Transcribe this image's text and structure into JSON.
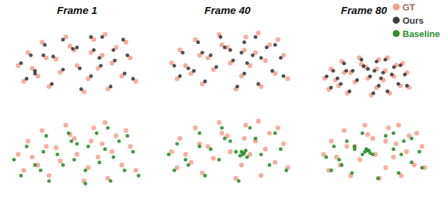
{
  "chart_data": [
    {
      "type": "scatter",
      "title": "Frame 1",
      "xlim": [
        0,
        100
      ],
      "ylim": [
        0,
        60
      ],
      "tick_labels": false,
      "series": [
        {
          "name": "GT",
          "color": "#f4a08e",
          "x": [
            8,
            15,
            22,
            12,
            25,
            35,
            30,
            42,
            38,
            48,
            55,
            50,
            62,
            58,
            68,
            72,
            65,
            78,
            82,
            75,
            88,
            92,
            85,
            45,
            28,
            60,
            70,
            18
          ],
          "y": [
            30,
            40,
            22,
            18,
            48,
            35,
            14,
            52,
            25,
            42,
            10,
            30,
            50,
            20,
            38,
            12,
            28,
            44,
            22,
            32,
            36,
            18,
            48,
            45,
            36,
            40,
            54,
            28
          ]
        },
        {
          "name": "Ours",
          "color": "#3c3c3c",
          "x": [
            10,
            17,
            20,
            14,
            27,
            33,
            32,
            40,
            40,
            50,
            53,
            52,
            60,
            60,
            66,
            74,
            67,
            76,
            84,
            77,
            86,
            90,
            83,
            47,
            26,
            62,
            68,
            20
          ],
          "y": [
            32,
            38,
            24,
            20,
            46,
            37,
            16,
            50,
            27,
            44,
            12,
            28,
            52,
            22,
            36,
            14,
            30,
            42,
            24,
            34,
            38,
            20,
            50,
            43,
            38,
            42,
            52,
            26
          ]
        }
      ]
    },
    {
      "type": "scatter",
      "title": "Frame 40",
      "xlim": [
        0,
        100
      ],
      "ylim": [
        0,
        60
      ],
      "tick_labels": false,
      "series": [
        {
          "name": "GT",
          "color": "#f4a08e",
          "x": [
            10,
            16,
            24,
            14,
            27,
            36,
            32,
            44,
            40,
            50,
            56,
            52,
            63,
            60,
            70,
            74,
            66,
            80,
            84,
            77,
            90,
            93,
            86,
            46,
            30,
            62,
            72,
            20
          ],
          "y": [
            32,
            42,
            24,
            20,
            50,
            36,
            16,
            54,
            27,
            44,
            12,
            32,
            52,
            22,
            40,
            14,
            30,
            46,
            24,
            34,
            38,
            20,
            50,
            46,
            38,
            42,
            55,
            30
          ]
        },
        {
          "name": "Ours",
          "color": "#3c3c3c",
          "x": [
            12,
            18,
            26,
            16,
            29,
            38,
            34,
            45,
            42,
            52,
            57,
            54,
            62,
            62,
            68,
            72,
            64,
            78,
            82,
            74,
            88,
            90,
            84,
            48,
            32,
            60,
            70,
            22
          ],
          "y": [
            30,
            40,
            26,
            22,
            48,
            38,
            18,
            52,
            29,
            42,
            14,
            34,
            48,
            24,
            38,
            16,
            32,
            44,
            26,
            36,
            36,
            22,
            46,
            44,
            40,
            40,
            52,
            28
          ]
        }
      ]
    },
    {
      "type": "scatter",
      "title": "Frame 80",
      "xlim": [
        0,
        100
      ],
      "ylim": [
        0,
        60
      ],
      "tick_labels": false,
      "legend": "upper right",
      "series": [
        {
          "name": "GT",
          "color": "#f4a08e",
          "x": [
            12,
            18,
            25,
            16,
            28,
            36,
            33,
            44,
            40,
            50,
            55,
            52,
            62,
            60,
            68,
            72,
            66,
            78,
            82,
            76,
            88,
            90,
            84,
            46,
            30,
            60,
            70,
            22
          ],
          "y": [
            30,
            40,
            22,
            18,
            48,
            36,
            14,
            52,
            26,
            42,
            12,
            30,
            50,
            20,
            38,
            14,
            28,
            44,
            22,
            32,
            36,
            20,
            46,
            45,
            36,
            40,
            52,
            28
          ]
        },
        {
          "name": "Ours",
          "color": "#3c3c3c",
          "x": [
            14,
            20,
            27,
            18,
            30,
            38,
            35,
            46,
            42,
            52,
            57,
            54,
            60,
            62,
            66,
            70,
            64,
            76,
            80,
            74,
            86,
            88,
            82,
            48,
            32,
            58,
            68,
            24
          ],
          "y": [
            32,
            38,
            24,
            20,
            46,
            38,
            16,
            50,
            28,
            40,
            14,
            32,
            48,
            22,
            36,
            16,
            30,
            42,
            24,
            34,
            34,
            22,
            44,
            43,
            38,
            38,
            50,
            30
          ]
        }
      ]
    },
    {
      "type": "scatter",
      "xlim": [
        0,
        100
      ],
      "ylim": [
        0,
        60
      ],
      "tick_labels": false,
      "series": [
        {
          "name": "GT",
          "color": "#f4a08e",
          "x": [
            8,
            15,
            22,
            12,
            25,
            35,
            30,
            42,
            38,
            48,
            55,
            50,
            62,
            58,
            68,
            72,
            65,
            78,
            82,
            75,
            88,
            92,
            85,
            45,
            28,
            60,
            70,
            18
          ],
          "y": [
            30,
            40,
            22,
            18,
            48,
            35,
            14,
            52,
            25,
            42,
            10,
            30,
            50,
            20,
            38,
            12,
            28,
            44,
            22,
            32,
            36,
            18,
            48,
            45,
            36,
            40,
            54,
            28
          ]
        },
        {
          "name": "Baseline",
          "color": "#2f8f2f",
          "x": [
            5,
            14,
            24,
            10,
            28,
            36,
            30,
            44,
            40,
            50,
            56,
            48,
            64,
            56,
            70,
            74,
            66,
            80,
            84,
            76,
            90,
            94,
            86,
            46,
            26,
            58,
            72,
            20
          ],
          "y": [
            26,
            36,
            18,
            14,
            44,
            30,
            10,
            46,
            22,
            38,
            8,
            26,
            46,
            18,
            34,
            10,
            24,
            40,
            18,
            28,
            32,
            14,
            44,
            40,
            32,
            36,
            50,
            22
          ]
        }
      ]
    },
    {
      "type": "scatter",
      "xlim": [
        0,
        100
      ],
      "ylim": [
        0,
        60
      ],
      "tick_labels": false,
      "series": [
        {
          "name": "GT",
          "color": "#f4a08e",
          "x": [
            10,
            16,
            24,
            14,
            27,
            36,
            32,
            44,
            40,
            50,
            56,
            52,
            63,
            60,
            70,
            74,
            66,
            80,
            84,
            77,
            90,
            93,
            86,
            46,
            30,
            62,
            72,
            20
          ],
          "y": [
            32,
            42,
            24,
            20,
            50,
            36,
            16,
            54,
            27,
            44,
            12,
            32,
            52,
            22,
            40,
            14,
            30,
            46,
            24,
            34,
            38,
            20,
            50,
            46,
            38,
            42,
            55,
            30
          ]
        },
        {
          "name": "Baseline",
          "color": "#2f8f2f",
          "x": [
            8,
            14,
            22,
            12,
            30,
            38,
            34,
            46,
            44,
            52,
            58,
            56,
            60,
            61,
            62,
            64,
            63,
            70,
            80,
            74,
            88,
            92,
            84,
            48,
            30,
            59,
            66,
            20
          ],
          "y": [
            30,
            38,
            22,
            18,
            46,
            34,
            14,
            50,
            26,
            40,
            10,
            32,
            32,
            30,
            31,
            28,
            33,
            42,
            22,
            30,
            34,
            18,
            46,
            42,
            36,
            29,
            50,
            26
          ]
        }
      ]
    },
    {
      "type": "scatter",
      "xlim": [
        0,
        100
      ],
      "ylim": [
        0,
        60
      ],
      "tick_labels": false,
      "series": [
        {
          "name": "GT",
          "color": "#f4a08e",
          "x": [
            12,
            18,
            25,
            16,
            28,
            36,
            33,
            44,
            40,
            50,
            55,
            52,
            62,
            60,
            68,
            72,
            66,
            78,
            82,
            76,
            88,
            90,
            84,
            46,
            30,
            60,
            70,
            22
          ],
          "y": [
            30,
            40,
            22,
            18,
            48,
            36,
            14,
            52,
            26,
            42,
            12,
            30,
            50,
            20,
            38,
            14,
            28,
            44,
            22,
            32,
            36,
            20,
            46,
            45,
            36,
            40,
            52,
            28
          ]
        },
        {
          "name": "Baseline",
          "color": "#2f8f2f",
          "x": [
            14,
            20,
            26,
            18,
            30,
            36,
            34,
            42,
            42,
            46,
            54,
            44,
            60,
            48,
            66,
            70,
            50,
            74,
            80,
            72,
            86,
            88,
            80,
            45,
            36,
            47,
            66,
            24
          ],
          "y": [
            28,
            36,
            22,
            18,
            40,
            34,
            16,
            46,
            30,
            33,
            12,
            32,
            44,
            31,
            34,
            16,
            30,
            40,
            24,
            30,
            32,
            20,
            42,
            34,
            36,
            33,
            46,
            26
          ]
        }
      ]
    }
  ]
}
